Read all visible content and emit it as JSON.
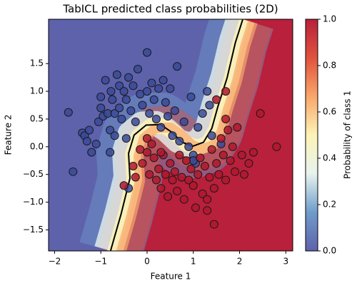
{
  "chart_data": {
    "type": "scatter",
    "title": "TabICL predicted class probabilities (2D)",
    "x_label": "Feature 1",
    "y_label": "Feature 2",
    "colorbar_label": "Probability of class 1",
    "colormap": [
      "#5e62ab",
      "#6f9ccb",
      "#e6f3ee",
      "#fdf3b6",
      "#f9a66a",
      "#e0523f",
      "#b8203b"
    ],
    "xlim": [
      -2.13,
      3.15
    ],
    "ylim": [
      -1.88,
      2.3
    ],
    "clim": [
      0,
      1
    ],
    "xticks": [
      {
        "value": -2,
        "label": "−2"
      },
      {
        "value": -1,
        "label": "−1"
      },
      0,
      1,
      2,
      3
    ],
    "yticks": [
      {
        "value": -1.5,
        "label": "−1.5"
      },
      {
        "value": -1,
        "label": "−1.0"
      },
      {
        "value": -0.5,
        "label": "−0.5"
      },
      {
        "value": 0,
        "label": "0.0"
      },
      0.5,
      {
        "value": 1,
        "label": "1.0"
      },
      1.5
    ],
    "cticks": [
      {
        "value": 0,
        "label": "0.0"
      },
      0.2,
      0.4,
      0.6,
      0.8,
      {
        "value": 1,
        "label": "1.0"
      }
    ],
    "boundary": {
      "x": [
        -0.79,
        -0.56,
        -0.37,
        -0.4,
        -0.28,
        -0.02,
        0.29,
        0.52,
        0.76,
        0.99,
        1.22,
        1.4,
        1.53,
        1.73,
        1.91,
        2.07
      ],
      "y": [
        -1.88,
        -1.21,
        -0.57,
        -0.12,
        0.21,
        0.39,
        0.4,
        0.27,
        0.08,
        0.01,
        0.08,
        0.33,
        0.72,
        1.24,
        1.88,
        2.3
      ]
    },
    "series": [
      {
        "color": "#3a4a9a",
        "x": [
          -1.7,
          -1.6,
          -1.4,
          -1.35,
          -1.3,
          -1.25,
          -1.2,
          -1.1,
          -1.05,
          -1.0,
          -1.0,
          -0.95,
          -0.9,
          -0.85,
          -0.8,
          -0.78,
          -0.75,
          -0.7,
          -0.7,
          -0.65,
          -0.6,
          -0.6,
          -0.55,
          -0.5,
          -0.45,
          -0.4,
          -0.35,
          -0.3,
          -0.25,
          -0.2,
          -0.15,
          -0.1,
          0.0,
          0.0,
          0.05,
          0.1,
          0.15,
          0.2,
          0.25,
          0.3,
          0.35,
          0.4,
          0.45,
          0.5,
          0.55,
          0.6,
          0.65,
          0.7,
          0.8,
          0.9,
          0.95,
          1.0,
          1.05,
          1.1,
          1.2,
          1.3,
          1.35,
          1.4,
          1.6,
          -0.8,
          -0.4,
          -0.45,
          1.0
        ],
        "values": [
          0.62,
          -0.45,
          0.25,
          0.2,
          0.1,
          0.3,
          -0.1,
          0.05,
          0.45,
          0.9,
          0.7,
          0.55,
          1.2,
          0.6,
          0.3,
          1.0,
          0.85,
          0.6,
          0.2,
          1.3,
          1.1,
          0.7,
          0.5,
          1.0,
          0.85,
          1.25,
          0.65,
          1.1,
          0.45,
          1.4,
          0.95,
          0.75,
          1.7,
          1.0,
          0.6,
          1.15,
          0.85,
          0.5,
          1.05,
          0.35,
          1.2,
          0.8,
          0.55,
          1.05,
          0.2,
          0.65,
          1.45,
          0.1,
          0.45,
          0.0,
          0.9,
          -0.15,
          -0.3,
          0.35,
          0.6,
          1.0,
          0.75,
          0.2,
          0.05,
          -0.1,
          -0.75,
          0.15,
          -0.25
        ]
      },
      {
        "color": "#b0182e",
        "x": [
          -0.5,
          -0.3,
          -0.1,
          0.0,
          0.0,
          0.05,
          0.1,
          0.15,
          0.2,
          0.25,
          0.3,
          0.35,
          0.4,
          0.45,
          0.5,
          0.55,
          0.6,
          0.65,
          0.7,
          0.75,
          0.8,
          0.85,
          0.9,
          0.95,
          1.0,
          1.05,
          1.1,
          1.15,
          1.2,
          1.25,
          1.3,
          1.35,
          1.4,
          1.45,
          1.5,
          1.55,
          1.6,
          1.65,
          1.7,
          1.75,
          1.8,
          1.85,
          1.9,
          1.95,
          2.05,
          2.1,
          2.2,
          2.3,
          2.45,
          2.8,
          1.7,
          1.7,
          1.5,
          1.45,
          -0.15,
          0.3,
          1.3,
          -0.25
        ],
        "values": [
          -0.7,
          -0.35,
          -0.3,
          0.15,
          -0.1,
          -0.5,
          0.05,
          -0.2,
          -0.6,
          -0.4,
          -0.75,
          -0.15,
          -0.5,
          -0.9,
          -0.3,
          -0.6,
          -0.45,
          -0.8,
          -0.15,
          -0.55,
          -0.95,
          -0.25,
          -0.6,
          -0.4,
          -0.7,
          -1.1,
          -0.5,
          -0.2,
          -0.85,
          -0.35,
          -1.15,
          -0.55,
          -0.05,
          -0.75,
          -0.3,
          -0.5,
          0.15,
          -0.15,
          -0.6,
          0.3,
          -0.25,
          0.0,
          -0.45,
          0.35,
          -0.15,
          -0.5,
          -0.3,
          -0.1,
          0.6,
          0.0,
          0.5,
          1.0,
          0.85,
          -1.4,
          -0.05,
          -0.1,
          -0.95,
          -0.55
        ]
      }
    ]
  }
}
